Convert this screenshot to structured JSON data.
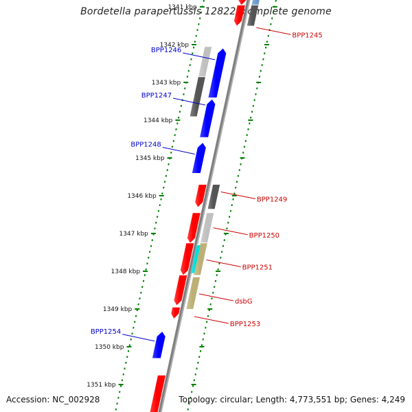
{
  "title": "Bordetella parapertussis 12822, complete genome",
  "accession": "Accession: NC_002928",
  "summary": "Topology: circular; Length: 4,773,551 bp; Genes: 4,249",
  "colors": {
    "forward_strand": "#ff0000",
    "reverse_strand": "#0000ff",
    "backbone": "#808080",
    "tick": "#008000",
    "cog_dark": "#555555",
    "cog_light": "#c0c0c0",
    "cog_steel": "#6a9ac8",
    "cog_cyan": "#00e0e0",
    "cog_khaki": "#bdb076"
  },
  "kbp_ticks": [
    {
      "kbp": 1341,
      "label": "1341 kbp"
    },
    {
      "kbp": 1342,
      "label": "1342 kbp"
    },
    {
      "kbp": 1343,
      "label": "1343 kbp"
    },
    {
      "kbp": 1344,
      "label": "1344 kbp"
    },
    {
      "kbp": 1345,
      "label": "1345 kbp"
    },
    {
      "kbp": 1346,
      "label": "1346 kbp"
    },
    {
      "kbp": 1347,
      "label": "1347 kbp"
    },
    {
      "kbp": 1348,
      "label": "1348 kbp"
    },
    {
      "kbp": 1349,
      "label": "1349 kbp"
    },
    {
      "kbp": 1350,
      "label": "1350 kbp"
    },
    {
      "kbp": 1351,
      "label": "1351 kbp"
    }
  ],
  "features": [
    {
      "kbp_start": 1340.45,
      "kbp_end": 1340.95,
      "track": "fwd",
      "dir": "down",
      "color": "#ff0000"
    },
    {
      "kbp_start": 1340.95,
      "kbp_end": 1341.5,
      "track": "fwd",
      "dir": "down",
      "color": "#ff0000"
    },
    {
      "kbp_start": 1340.5,
      "kbp_end": 1340.95,
      "track": "cogR",
      "dir": "none",
      "color": "#6a9ac8"
    },
    {
      "kbp_start": 1340.95,
      "kbp_end": 1341.5,
      "track": "cogR",
      "dir": "none",
      "color": "#555555"
    },
    {
      "kbp_start": 1342.05,
      "kbp_end": 1342.85,
      "track": "cogL",
      "dir": "none",
      "color": "#c0c0c0"
    },
    {
      "kbp_start": 1342.85,
      "kbp_end": 1343.9,
      "track": "cogL",
      "dir": "none",
      "color": "#555555"
    },
    {
      "kbp_start": 1342.1,
      "kbp_end": 1343.4,
      "track": "rev",
      "dir": "up",
      "color": "#0000ff"
    },
    {
      "kbp_start": 1343.45,
      "kbp_end": 1344.45,
      "track": "rev",
      "dir": "up",
      "color": "#0000ff"
    },
    {
      "kbp_start": 1344.6,
      "kbp_end": 1345.4,
      "track": "rev",
      "dir": "up",
      "color": "#0000ff"
    },
    {
      "kbp_start": 1345.7,
      "kbp_end": 1346.3,
      "track": "fwd",
      "dir": "down",
      "color": "#ff0000"
    },
    {
      "kbp_start": 1345.7,
      "kbp_end": 1346.35,
      "track": "cogR",
      "dir": "none",
      "color": "#555555"
    },
    {
      "kbp_start": 1346.45,
      "kbp_end": 1347.25,
      "track": "fwd",
      "dir": "down",
      "color": "#ff0000"
    },
    {
      "kbp_start": 1346.45,
      "kbp_end": 1347.25,
      "track": "cogR",
      "dir": "none",
      "color": "#c0c0c0"
    },
    {
      "kbp_start": 1347.25,
      "kbp_end": 1348.1,
      "track": "fwd",
      "dir": "down",
      "color": "#ff0000"
    },
    {
      "kbp_start": 1347.25,
      "kbp_end": 1348.1,
      "track": "cogR",
      "dir": "none",
      "color": "#bdb076"
    },
    {
      "kbp_start": 1347.3,
      "kbp_end": 1348.05,
      "track": "cogRin",
      "dir": "none",
      "color": "#00e0e0"
    },
    {
      "kbp_start": 1348.1,
      "kbp_end": 1348.9,
      "track": "fwd",
      "dir": "down",
      "color": "#ff0000"
    },
    {
      "kbp_start": 1348.15,
      "kbp_end": 1349.0,
      "track": "cogR",
      "dir": "none",
      "color": "#bdb076"
    },
    {
      "kbp_start": 1348.95,
      "kbp_end": 1349.25,
      "track": "fwd",
      "dir": "down",
      "color": "#ff0000"
    },
    {
      "kbp_start": 1349.6,
      "kbp_end": 1350.3,
      "track": "rev",
      "dir": "up",
      "color": "#0000ff"
    },
    {
      "kbp_start": 1350.75,
      "kbp_end": 1351.9,
      "track": "fwd",
      "dir": "down",
      "color": "#ff0000"
    }
  ],
  "gene_labels": [
    {
      "name": "BPP1245",
      "side": "right",
      "kbp": 1341.55,
      "color": "#cc0000"
    },
    {
      "name": "BPP1246",
      "side": "left",
      "kbp": 1342.4,
      "color": "#0000cc"
    },
    {
      "name": "BPP1247",
      "side": "left",
      "kbp": 1343.6,
      "color": "#0000cc"
    },
    {
      "name": "BPP1248",
      "side": "left",
      "kbp": 1344.9,
      "color": "#0000cc"
    },
    {
      "name": "BPP1249",
      "side": "right",
      "kbp": 1345.9,
      "color": "#cc0000"
    },
    {
      "name": "BPP1250",
      "side": "right",
      "kbp": 1346.85,
      "color": "#cc0000"
    },
    {
      "name": "BPP1251",
      "side": "right",
      "kbp": 1347.7,
      "color": "#cc0000"
    },
    {
      "name": "dsbG",
      "side": "right",
      "kbp": 1348.6,
      "color": "#cc0000"
    },
    {
      "name": "BPP1253",
      "side": "right",
      "kbp": 1349.2,
      "color": "#cc0000"
    },
    {
      "name": "BPP1254",
      "side": "left",
      "kbp": 1349.85,
      "color": "#0000cc"
    }
  ]
}
